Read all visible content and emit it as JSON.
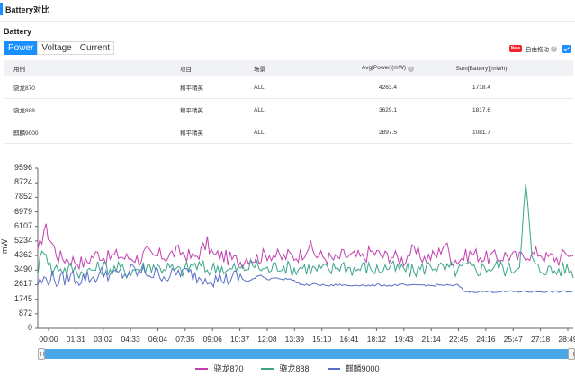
{
  "header": {
    "title": "Battery对比"
  },
  "section": {
    "title": "Battery"
  },
  "tabs": [
    {
      "label": "Power",
      "active": true
    },
    {
      "label": "Voltage",
      "active": false
    },
    {
      "label": "Current",
      "active": false
    }
  ],
  "toggle": {
    "badge": "New",
    "label": "自由拖动",
    "checked": true
  },
  "table": {
    "headers": [
      "用例",
      "项目",
      "场景",
      "Avg[Power](mW)",
      "Sum[Battery](mWh)"
    ],
    "rows": [
      [
        "骁龙870",
        "和平精英",
        "ALL",
        "4263.4",
        "1718.4"
      ],
      [
        "骁龙888",
        "和平精英",
        "ALL",
        "3629.1",
        "1817.6"
      ],
      [
        "麒麟9000",
        "和平精英",
        "ALL",
        "2897.5",
        "1081.7"
      ]
    ]
  },
  "chart_data": {
    "type": "line",
    "ylabel": "mW",
    "xlabel": "",
    "ylim": [
      0,
      9596
    ],
    "yticks": [
      "9596",
      "8724",
      "7852",
      "6979",
      "6107",
      "5234",
      "4362",
      "3490",
      "2617",
      "1745",
      "872",
      "0"
    ],
    "xticks": [
      "00:00",
      "01:31",
      "03:02",
      "04:33",
      "06:04",
      "07:35",
      "09:06",
      "10:37",
      "12:08",
      "13:39",
      "15:10",
      "16:41",
      "18:12",
      "19:43",
      "21:14",
      "22:45",
      "24:16",
      "25:47",
      "27:18",
      "28:49"
    ],
    "legend_position": "bottom",
    "series": [
      {
        "name": "骁龙870",
        "color": "#c23fae",
        "avg": 4263.4,
        "values": [
          4400,
          6100,
          5200,
          4300,
          4200,
          4100,
          4000,
          3900,
          4300,
          4500,
          4200,
          4300,
          4400,
          4200,
          4300,
          4100,
          4600,
          4200,
          4400,
          4300,
          4500,
          4600,
          4400,
          4200,
          4600,
          5100,
          4300,
          4400,
          4200,
          4100,
          4000,
          4300,
          4200,
          4300,
          4500,
          4400,
          4200,
          4400,
          4300,
          4500,
          5000,
          4400,
          4300,
          4200,
          4100,
          4400,
          4300,
          4300,
          4200,
          4600,
          4500,
          4300,
          4400,
          4200,
          4100,
          4600,
          4500,
          4200,
          4300,
          4400,
          5200,
          4200,
          4100,
          4300,
          4500,
          4400,
          4200,
          4300,
          4200,
          4400,
          4300,
          4200,
          4500,
          4400,
          4600,
          4200,
          4300,
          4100,
          4600,
          4300
        ]
      },
      {
        "name": "骁龙888",
        "color": "#3ba58a",
        "avg": 3629.1,
        "values": [
          3500,
          5000,
          3400,
          3700,
          3500,
          3600,
          3400,
          3300,
          3500,
          3600,
          3700,
          3500,
          3600,
          3400,
          3500,
          3600,
          3700,
          3800,
          3600,
          3700,
          3500,
          3400,
          3600,
          3800,
          3700,
          3500,
          3600,
          3700,
          3400,
          3600,
          3500,
          3700,
          3800,
          3600,
          3500,
          3700,
          3800,
          3600,
          3500,
          3700,
          3600,
          3500,
          3600,
          3400,
          3700,
          3800,
          3600,
          3500,
          3700,
          3600,
          3500,
          3600,
          3700,
          3500,
          3600,
          3400,
          3500,
          3600,
          3800,
          3700,
          3500,
          3600,
          3400,
          3700,
          3600,
          3500,
          3700,
          3600,
          3800,
          3500,
          3600,
          3700,
          8600,
          3900,
          3500,
          3600,
          3400,
          3500,
          3600,
          3400
        ]
      },
      {
        "name": "麒麟9000",
        "color": "#5b6fc8",
        "avg": 2897.5,
        "values": [
          2700,
          2900,
          3100,
          2800,
          3000,
          3200,
          2900,
          3100,
          3000,
          3200,
          3400,
          3100,
          3300,
          3200,
          3500,
          3300,
          3400,
          3200,
          3300,
          3100,
          3200,
          3400,
          3300,
          3200,
          3000,
          3100,
          2900,
          3000,
          2900,
          3100,
          3000,
          2800,
          3000,
          3200,
          2900,
          3100,
          2900,
          3000,
          2800,
          2600,
          2600,
          2650,
          2600,
          2550,
          2600,
          2600,
          2550,
          2600,
          2600,
          2550,
          2600,
          2600,
          2550,
          2600,
          2600,
          2550,
          2600,
          2600,
          2550,
          2600,
          2600,
          2550,
          2600,
          2200,
          2200,
          2200,
          2200,
          2200,
          2200,
          2200,
          2200,
          2200,
          2200,
          2200,
          2200,
          2200,
          2200,
          2200,
          2200,
          2200
        ]
      }
    ]
  }
}
